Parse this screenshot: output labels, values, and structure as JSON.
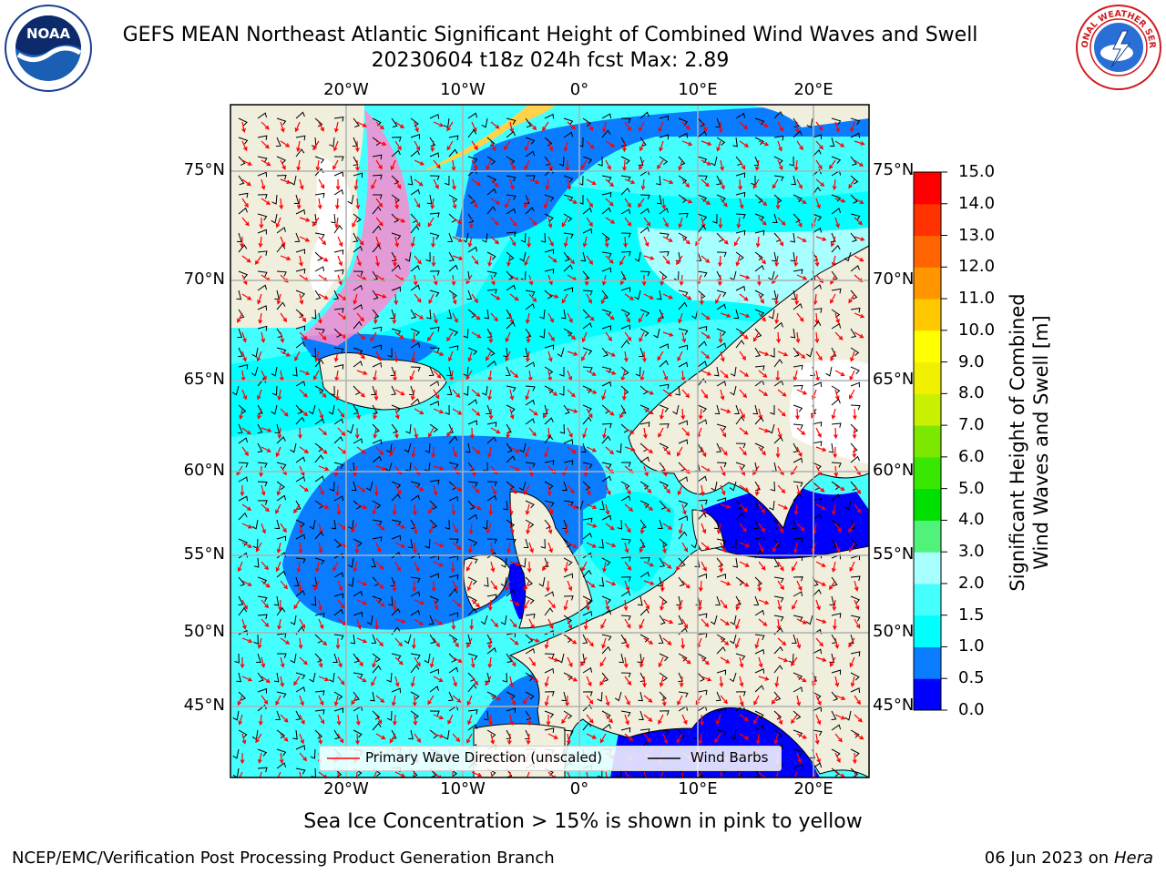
{
  "header": {
    "title_line1": "GEFS MEAN Northeast Atlantic Significant Height of Combined Wind Waves and Swell",
    "title_line2": "20230604 t18z 024h fcst   Max: 2.89"
  },
  "axes": {
    "lon_labels": [
      "20°W",
      "10°W",
      "0°",
      "10°E",
      "20°E"
    ],
    "lat_labels": [
      "75°N",
      "70°N",
      "65°N",
      "60°N",
      "55°N",
      "50°N",
      "45°N"
    ]
  },
  "colorbar": {
    "label_line1": "Significant Height of Combined",
    "label_line2": "Wind Waves and Swell [m]",
    "levels": [
      "0.0",
      "0.5",
      "1.0",
      "1.5",
      "2.0",
      "3.0",
      "4.0",
      "5.0",
      "6.0",
      "7.0",
      "8.0",
      "9.0",
      "10.0",
      "11.0",
      "12.0",
      "13.0",
      "14.0",
      "15.0"
    ],
    "colors": [
      "#0000ff",
      "#0a7cff",
      "#00ffff",
      "#45ffff",
      "#a8ffff",
      "#50f27c",
      "#00e000",
      "#38e800",
      "#7ce800",
      "#c8f000",
      "#f0f000",
      "#ffff00",
      "#ffc800",
      "#ff9600",
      "#ff6400",
      "#ff3200",
      "#ff0000"
    ]
  },
  "legend": {
    "wave_label": "Primary Wave Direction (unscaled)",
    "barb_label": "Wind Barbs"
  },
  "footer": {
    "note": "Sea Ice Concentration > 15% is shown in pink to yellow",
    "credit": "NCEP/EMC/Verification Post Processing Product Generation Branch",
    "date": "06 Jun 2023 on",
    "host": "Hera"
  },
  "logos": {
    "noaa_text": "NOAA",
    "nws_text": "NATIONAL WEATHER SERVICE"
  }
}
